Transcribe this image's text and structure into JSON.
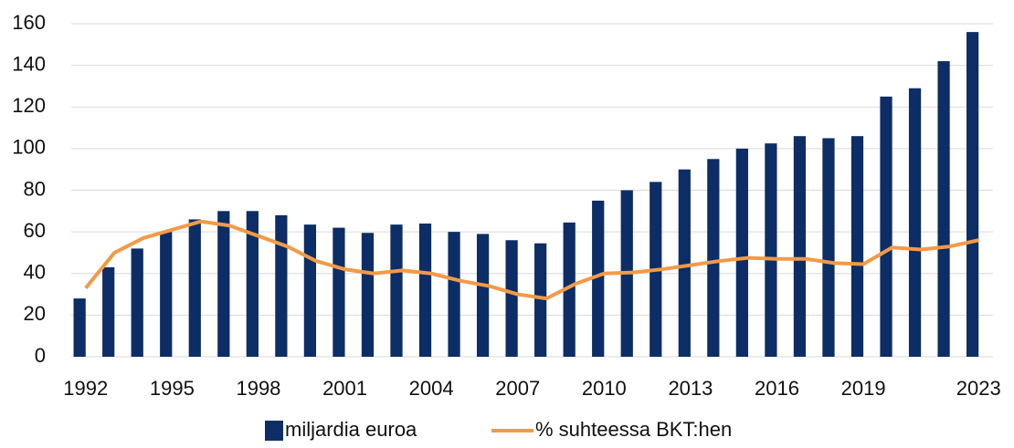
{
  "chart_data": {
    "type": "bar_line",
    "categories": [
      "1992",
      null,
      null,
      "1995",
      null,
      null,
      "1998",
      null,
      null,
      "2001",
      null,
      null,
      "2004",
      null,
      null,
      "2007",
      null,
      null,
      "2010",
      null,
      null,
      "2013",
      null,
      null,
      "2016",
      null,
      null,
      "2019",
      null,
      null,
      null,
      "2023"
    ],
    "series": [
      {
        "name": "miljardia euroa",
        "type": "bar",
        "color": "#0d2d66",
        "values": [
          28,
          43,
          52,
          60,
          66,
          70,
          70,
          68,
          63.5,
          62,
          59.5,
          63.5,
          64,
          60,
          59,
          56,
          54.5,
          64.5,
          75,
          80,
          84,
          90,
          95,
          100,
          102.5,
          106,
          105,
          106,
          125,
          129,
          142,
          156
        ]
      },
      {
        "name": "% suhteessa BKT:hen",
        "type": "line",
        "color": "#f29a46",
        "values": [
          33,
          50,
          57,
          61,
          65,
          63,
          58,
          53,
          46,
          42,
          40,
          41.5,
          40,
          36.5,
          34,
          30,
          28,
          35,
          40,
          40.5,
          42,
          44,
          46,
          47.5,
          47,
          47,
          45,
          44.5,
          52.5,
          51.5,
          53,
          56
        ]
      }
    ],
    "ylim": [
      0,
      160
    ],
    "yticks": [
      0,
      20,
      40,
      60,
      80,
      100,
      120,
      140,
      160
    ],
    "grid": true,
    "legend": "bottom"
  }
}
